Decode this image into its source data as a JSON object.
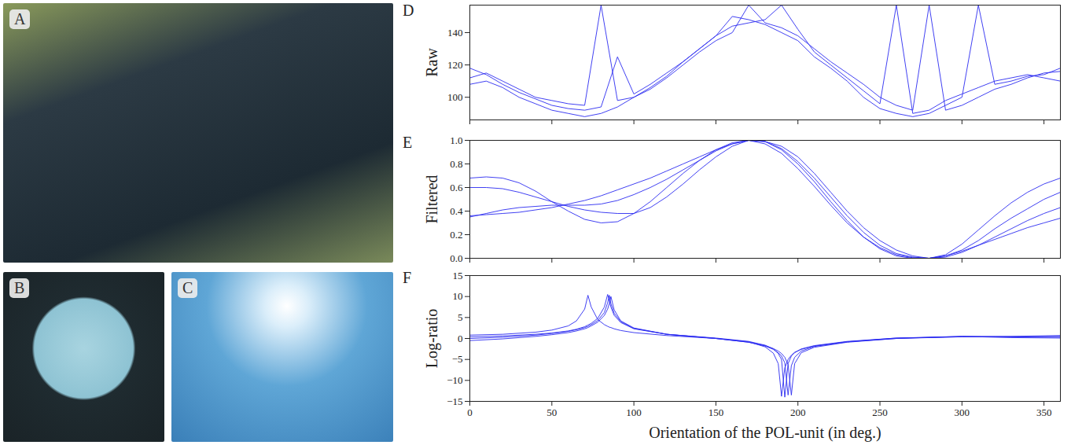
{
  "photo_panels": [
    "A",
    "B",
    "C"
  ],
  "chart_data": [
    {
      "panel": "D",
      "type": "line",
      "ylabel": "Raw",
      "tick_labels": "y",
      "xlim": [
        0,
        360
      ],
      "xticks": [
        0,
        50,
        100,
        150,
        200,
        250,
        300,
        350
      ],
      "ylim": [
        86,
        157
      ],
      "yticks": [
        100,
        120,
        140
      ],
      "x": [
        0,
        10,
        20,
        30,
        40,
        50,
        60,
        70,
        80,
        90,
        100,
        110,
        120,
        130,
        140,
        150,
        160,
        170,
        180,
        190,
        200,
        210,
        220,
        230,
        240,
        250,
        260,
        270,
        280,
        290,
        300,
        310,
        320,
        330,
        340,
        350,
        360
      ],
      "series": [
        {
          "color": "#2b2bf0",
          "values": [
            112,
            115,
            110,
            105,
            100,
            98,
            96,
            95,
            157,
            98,
            100,
            105,
            112,
            120,
            128,
            135,
            140,
            157,
            146,
            143,
            138,
            130,
            122,
            115,
            108,
            100,
            95,
            92,
            157,
            92,
            95,
            100,
            105,
            108,
            112,
            115,
            116
          ]
        },
        {
          "color": "#2b2bf0",
          "values": [
            118,
            114,
            108,
            103,
            99,
            95,
            93,
            92,
            94,
            125,
            102,
            108,
            115,
            122,
            130,
            138,
            150,
            148,
            145,
            140,
            135,
            125,
            118,
            110,
            100,
            93,
            90,
            88,
            90,
            95,
            100,
            157,
            108,
            110,
            113,
            114,
            118
          ]
        },
        {
          "color": "#2b2bf0",
          "values": [
            108,
            110,
            106,
            100,
            96,
            92,
            90,
            88,
            90,
            94,
            100,
            106,
            113,
            122,
            130,
            138,
            144,
            146,
            148,
            157,
            142,
            128,
            120,
            112,
            104,
            96,
            157,
            90,
            92,
            98,
            102,
            106,
            110,
            112,
            114,
            112,
            110
          ]
        }
      ]
    },
    {
      "panel": "E",
      "type": "line",
      "ylabel": "Filtered",
      "tick_labels": "y",
      "xlim": [
        0,
        360
      ],
      "xticks": [
        0,
        50,
        100,
        150,
        200,
        250,
        300,
        350
      ],
      "ylim": [
        0,
        1
      ],
      "yticks": [
        0,
        0.2,
        0.4,
        0.6,
        0.8,
        1
      ],
      "x": [
        0,
        10,
        20,
        30,
        40,
        50,
        60,
        70,
        80,
        90,
        100,
        110,
        120,
        130,
        140,
        150,
        160,
        170,
        180,
        190,
        200,
        210,
        220,
        230,
        240,
        250,
        260,
        270,
        280,
        290,
        300,
        310,
        320,
        330,
        340,
        350,
        360
      ],
      "series": [
        {
          "color": "#2b2bf0",
          "values": [
            0.68,
            0.69,
            0.68,
            0.64,
            0.57,
            0.48,
            0.4,
            0.33,
            0.3,
            0.31,
            0.38,
            0.48,
            0.6,
            0.72,
            0.83,
            0.92,
            0.98,
            1.0,
            0.97,
            0.89,
            0.76,
            0.61,
            0.45,
            0.3,
            0.18,
            0.09,
            0.03,
            0.005,
            0.0,
            0.03,
            0.12,
            0.24,
            0.36,
            0.47,
            0.56,
            0.63,
            0.68
          ]
        },
        {
          "color": "#2b2bf0",
          "values": [
            0.6,
            0.6,
            0.59,
            0.56,
            0.52,
            0.48,
            0.44,
            0.41,
            0.39,
            0.38,
            0.38,
            0.43,
            0.52,
            0.63,
            0.75,
            0.86,
            0.95,
            1.0,
            0.99,
            0.92,
            0.8,
            0.65,
            0.48,
            0.32,
            0.18,
            0.08,
            0.02,
            0.0,
            0.0,
            0.02,
            0.07,
            0.15,
            0.25,
            0.34,
            0.42,
            0.5,
            0.56
          ]
        },
        {
          "color": "#2b2bf0",
          "values": [
            0.35,
            0.38,
            0.41,
            0.43,
            0.44,
            0.45,
            0.45,
            0.45,
            0.46,
            0.49,
            0.54,
            0.6,
            0.67,
            0.75,
            0.83,
            0.91,
            0.97,
            1.0,
            0.99,
            0.93,
            0.82,
            0.68,
            0.52,
            0.36,
            0.22,
            0.11,
            0.04,
            0.01,
            0.0,
            0.02,
            0.06,
            0.11,
            0.16,
            0.21,
            0.26,
            0.3,
            0.34
          ]
        },
        {
          "color": "#2b2bf0",
          "values": [
            0.36,
            0.37,
            0.38,
            0.39,
            0.41,
            0.43,
            0.46,
            0.49,
            0.53,
            0.58,
            0.63,
            0.68,
            0.74,
            0.8,
            0.86,
            0.92,
            0.97,
            1.0,
            0.99,
            0.95,
            0.86,
            0.72,
            0.56,
            0.4,
            0.26,
            0.15,
            0.07,
            0.02,
            0.0,
            0.01,
            0.05,
            0.11,
            0.18,
            0.25,
            0.32,
            0.38,
            0.43
          ]
        }
      ]
    },
    {
      "panel": "F",
      "type": "line",
      "ylabel": "Log-ratio",
      "xlabel": "Orientation of the POL-unit (in deg.)",
      "xlim": [
        0,
        360
      ],
      "xticks": [
        0,
        50,
        100,
        150,
        200,
        250,
        300,
        350
      ],
      "ylim": [
        -15,
        15
      ],
      "yticks": [
        -15,
        -10,
        -5,
        0,
        5,
        10,
        15
      ],
      "x": [
        0,
        20,
        40,
        50,
        60,
        65,
        70,
        72,
        74,
        78,
        82,
        84,
        85,
        86,
        88,
        92,
        100,
        120,
        150,
        170,
        180,
        185,
        188,
        190,
        192,
        194,
        196,
        198,
        202,
        210,
        230,
        260,
        300,
        330,
        360
      ],
      "series": [
        {
          "color": "#2b2bf0",
          "values": [
            0.8,
            1.0,
            1.5,
            2.0,
            3.0,
            4.2,
            7.0,
            10.3,
            7.5,
            4.5,
            3.3,
            2.9,
            2.7,
            2.6,
            2.3,
            1.9,
            1.4,
            0.7,
            0.0,
            -0.8,
            -2.0,
            -3.5,
            -6.0,
            -13.8,
            -7.0,
            -5.0,
            -4.0,
            -3.3,
            -2.6,
            -1.8,
            -0.8,
            0.0,
            0.4,
            0.5,
            0.7
          ]
        },
        {
          "color": "#2b2bf0",
          "values": [
            0.4,
            0.6,
            1.0,
            1.3,
            1.8,
            2.2,
            2.8,
            3.2,
            3.6,
            4.8,
            7.5,
            10.5,
            9.0,
            7.5,
            5.5,
            3.8,
            2.3,
            1.0,
            0.1,
            -0.7,
            -1.6,
            -2.5,
            -3.6,
            -5.0,
            -14.0,
            -6.0,
            -4.2,
            -3.4,
            -2.5,
            -1.7,
            -0.7,
            0.1,
            0.4,
            0.4,
            0.5
          ]
        },
        {
          "color": "#2b2bf0",
          "values": [
            0.0,
            0.3,
            0.8,
            1.2,
            1.7,
            2.1,
            2.6,
            2.9,
            3.3,
            4.3,
            6.2,
            8.5,
            10.3,
            8.3,
            6.0,
            4.0,
            2.4,
            1.0,
            0.0,
            -0.9,
            -1.8,
            -2.6,
            -3.4,
            -4.2,
            -5.8,
            -13.5,
            -6.5,
            -4.5,
            -3.0,
            -1.9,
            -0.8,
            0.1,
            0.5,
            0.4,
            0.3
          ]
        },
        {
          "color": "#2b2bf0",
          "values": [
            -0.5,
            -0.1,
            0.5,
            0.9,
            1.4,
            1.8,
            2.3,
            2.6,
            3.0,
            3.9,
            5.5,
            7.0,
            8.3,
            10.0,
            6.8,
            4.2,
            2.5,
            1.0,
            0.0,
            -0.9,
            -1.7,
            -2.4,
            -3.0,
            -3.6,
            -4.5,
            -6.2,
            -13.5,
            -6.0,
            -3.4,
            -2.1,
            -0.9,
            0.0,
            0.5,
            0.2,
            0.1
          ]
        }
      ]
    }
  ]
}
